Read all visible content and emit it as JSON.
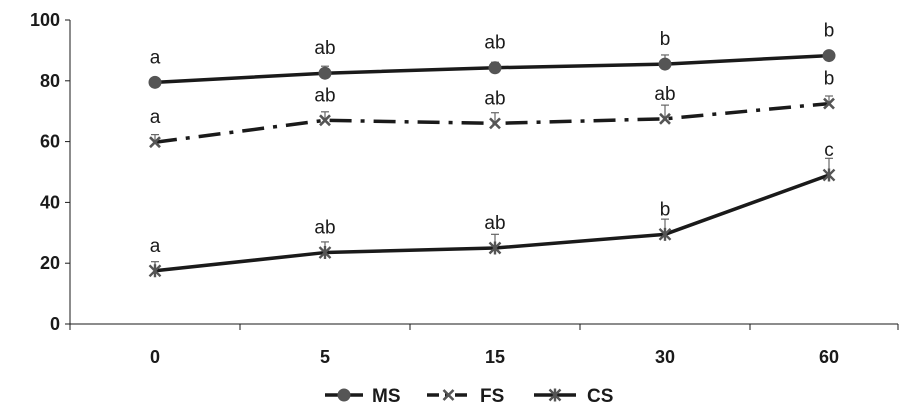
{
  "chart_data": {
    "type": "line",
    "categories": [
      "0",
      "5",
      "15",
      "30",
      "60"
    ],
    "ylim": [
      0,
      100
    ],
    "yticks": [
      "0",
      "20",
      "40",
      "60",
      "80",
      "100"
    ],
    "grid": false,
    "legend_placement": "bottom",
    "series": [
      {
        "name": "MS",
        "values": [
          79.5,
          82.5,
          84.3,
          85.5,
          88.3
        ],
        "errors": [
          1.3,
          2.3,
          1.8,
          3.0,
          1.0
        ],
        "labels": [
          "a",
          "ab",
          "ab",
          "b",
          "b"
        ],
        "line_style": "solid",
        "marker": "circle",
        "color": "#1a1a1a",
        "marker_color": "#555555"
      },
      {
        "name": "FS",
        "values": [
          59.8,
          67.0,
          66.0,
          67.5,
          72.5
        ],
        "errors": [
          2.5,
          2.8,
          3.5,
          4.5,
          2.5
        ],
        "labels": [
          "a",
          "ab",
          "ab",
          "ab",
          "b"
        ],
        "line_style": "dash-dot",
        "marker": "x",
        "color": "#1a1a1a",
        "marker_color": "#555555"
      },
      {
        "name": "CS",
        "values": [
          17.5,
          23.5,
          25.0,
          29.5,
          49.0
        ],
        "errors": [
          3.0,
          3.5,
          4.5,
          5.0,
          5.5
        ],
        "labels": [
          "a",
          "ab",
          "ab",
          "b",
          "c"
        ],
        "line_style": "solid",
        "marker": "asterisk",
        "color": "#1a1a1a",
        "marker_color": "#555555"
      }
    ]
  }
}
